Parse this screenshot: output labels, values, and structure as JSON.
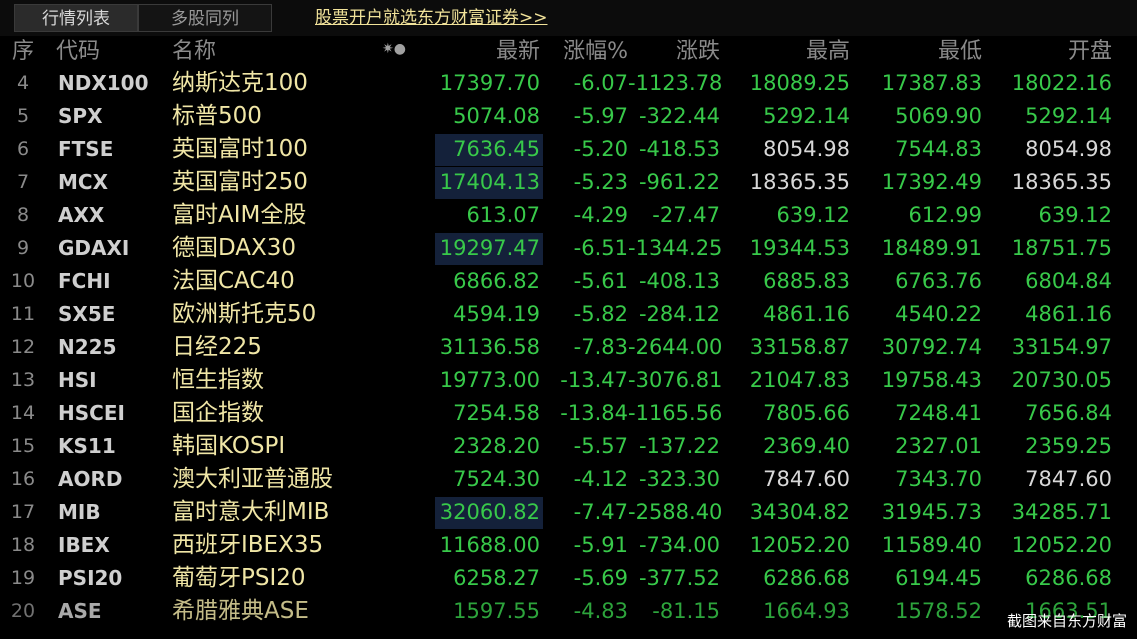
{
  "tabs": [
    {
      "label": "行情列表",
      "active": true
    },
    {
      "label": "多股同列",
      "active": false
    }
  ],
  "promo_link": "股票开户就选东方财富证券>>",
  "columns": {
    "idx": "序",
    "code": "代码",
    "name": "名称",
    "latest": "最新",
    "change_pct": "涨幅%",
    "change": "涨跌",
    "high": "最高",
    "low": "最低",
    "open": "开盘"
  },
  "rows": [
    {
      "idx": "4",
      "code": "NDX100",
      "name": "纳斯达克100",
      "latest": "17397.70",
      "pct": "-6.07",
      "chg": "-1123.78",
      "high": "18089.25",
      "low": "17387.83",
      "open": "18022.16",
      "highlight": false,
      "high_white": false,
      "low_white": false,
      "open_white": false
    },
    {
      "idx": "5",
      "code": "SPX",
      "name": "标普500",
      "latest": "5074.08",
      "pct": "-5.97",
      "chg": "-322.44",
      "high": "5292.14",
      "low": "5069.90",
      "open": "5292.14",
      "highlight": false,
      "high_white": false,
      "low_white": false,
      "open_white": false
    },
    {
      "idx": "6",
      "code": "FTSE",
      "name": "英国富时100",
      "latest": "7636.45",
      "pct": "-5.20",
      "chg": "-418.53",
      "high": "8054.98",
      "low": "7544.83",
      "open": "8054.98",
      "highlight": true,
      "high_white": true,
      "low_white": false,
      "open_white": true
    },
    {
      "idx": "7",
      "code": "MCX",
      "name": "英国富时250",
      "latest": "17404.13",
      "pct": "-5.23",
      "chg": "-961.22",
      "high": "18365.35",
      "low": "17392.49",
      "open": "18365.35",
      "highlight": true,
      "high_white": true,
      "low_white": false,
      "open_white": true
    },
    {
      "idx": "8",
      "code": "AXX",
      "name": "富时AIM全股",
      "latest": "613.07",
      "pct": "-4.29",
      "chg": "-27.47",
      "high": "639.12",
      "low": "612.99",
      "open": "639.12",
      "highlight": false,
      "high_white": false,
      "low_white": false,
      "open_white": false
    },
    {
      "idx": "9",
      "code": "GDAXI",
      "name": "德国DAX30",
      "latest": "19297.47",
      "pct": "-6.51",
      "chg": "-1344.25",
      "high": "19344.53",
      "low": "18489.91",
      "open": "18751.75",
      "highlight": true,
      "high_white": false,
      "low_white": false,
      "open_white": false
    },
    {
      "idx": "10",
      "code": "FCHI",
      "name": "法国CAC40",
      "latest": "6866.82",
      "pct": "-5.61",
      "chg": "-408.13",
      "high": "6885.83",
      "low": "6763.76",
      "open": "6804.84",
      "highlight": false,
      "high_white": false,
      "low_white": false,
      "open_white": false
    },
    {
      "idx": "11",
      "code": "SX5E",
      "name": "欧洲斯托克50",
      "latest": "4594.19",
      "pct": "-5.82",
      "chg": "-284.12",
      "high": "4861.16",
      "low": "4540.22",
      "open": "4861.16",
      "highlight": false,
      "high_white": false,
      "low_white": false,
      "open_white": false
    },
    {
      "idx": "12",
      "code": "N225",
      "name": "日经225",
      "latest": "31136.58",
      "pct": "-7.83",
      "chg": "-2644.00",
      "high": "33158.87",
      "low": "30792.74",
      "open": "33154.97",
      "highlight": false,
      "high_white": false,
      "low_white": false,
      "open_white": false
    },
    {
      "idx": "13",
      "code": "HSI",
      "name": "恒生指数",
      "latest": "19773.00",
      "pct": "-13.47",
      "chg": "-3076.81",
      "high": "21047.83",
      "low": "19758.43",
      "open": "20730.05",
      "highlight": false,
      "high_white": false,
      "low_white": false,
      "open_white": false
    },
    {
      "idx": "14",
      "code": "HSCEI",
      "name": "国企指数",
      "latest": "7254.58",
      "pct": "-13.84",
      "chg": "-1165.56",
      "high": "7805.66",
      "low": "7248.41",
      "open": "7656.84",
      "highlight": false,
      "high_white": false,
      "low_white": false,
      "open_white": false
    },
    {
      "idx": "15",
      "code": "KS11",
      "name": "韩国KOSPI",
      "latest": "2328.20",
      "pct": "-5.57",
      "chg": "-137.22",
      "high": "2369.40",
      "low": "2327.01",
      "open": "2359.25",
      "highlight": false,
      "high_white": false,
      "low_white": false,
      "open_white": false
    },
    {
      "idx": "16",
      "code": "AORD",
      "name": "澳大利亚普通股",
      "latest": "7524.30",
      "pct": "-4.12",
      "chg": "-323.30",
      "high": "7847.60",
      "low": "7343.70",
      "open": "7847.60",
      "highlight": false,
      "high_white": true,
      "low_white": false,
      "open_white": true
    },
    {
      "idx": "17",
      "code": "MIB",
      "name": "富时意大利MIB",
      "latest": "32060.82",
      "pct": "-7.47",
      "chg": "-2588.40",
      "high": "34304.82",
      "low": "31945.73",
      "open": "34285.71",
      "highlight": true,
      "high_white": false,
      "low_white": false,
      "open_white": false
    },
    {
      "idx": "18",
      "code": "IBEX",
      "name": "西班牙IBEX35",
      "latest": "11688.00",
      "pct": "-5.91",
      "chg": "-734.00",
      "high": "12052.20",
      "low": "11589.40",
      "open": "12052.20",
      "highlight": false,
      "high_white": false,
      "low_white": false,
      "open_white": false
    },
    {
      "idx": "19",
      "code": "PSI20",
      "name": "葡萄牙PSI20",
      "latest": "6258.27",
      "pct": "-5.69",
      "chg": "-377.52",
      "high": "6286.68",
      "low": "6194.45",
      "open": "6286.68",
      "highlight": false,
      "high_white": false,
      "low_white": false,
      "open_white": false
    },
    {
      "idx": "20",
      "code": "ASE",
      "name": "希腊雅典ASE",
      "latest": "1597.55",
      "pct": "-4.83",
      "chg": "-81.15",
      "high": "1664.93",
      "low": "1578.52",
      "open": "1663.51",
      "highlight": false,
      "high_white": false,
      "low_white": false,
      "open_white": false
    }
  ],
  "watermark": "截图来自东方财富",
  "colors": {
    "down": "#38c94a",
    "name": "#f0e6a6",
    "highlight_bg": "#14213a",
    "promo": "#f2e39a"
  }
}
